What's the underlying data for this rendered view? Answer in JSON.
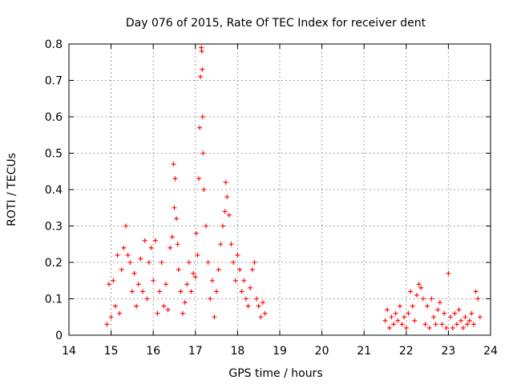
{
  "chart_data": {
    "type": "scatter",
    "title": "Day 076 of 2015, Rate Of TEC Index for receiver dent",
    "xlabel": "GPS time / hours",
    "ylabel": "ROTI / TECUs",
    "xlim": [
      14,
      24
    ],
    "ylim": [
      0,
      0.8
    ],
    "xticks": [
      "14",
      "15",
      "16",
      "17",
      "18",
      "19",
      "20",
      "21",
      "22",
      "23",
      "24"
    ],
    "yticks": [
      "0",
      "0.1",
      "0.2",
      "0.3",
      "0.4",
      "0.5",
      "0.6",
      "0.7",
      "0.8"
    ],
    "grid": true,
    "marker": "+",
    "color": "#ff0000",
    "series": [
      {
        "name": "ROTI",
        "x": [
          14.9,
          14.95,
          15.0,
          15.05,
          15.1,
          15.15,
          15.2,
          15.25,
          15.3,
          15.35,
          15.4,
          15.45,
          15.5,
          15.55,
          15.6,
          15.65,
          15.7,
          15.75,
          15.8,
          15.85,
          15.9,
          15.95,
          16.0,
          16.05,
          16.1,
          16.15,
          16.2,
          16.25,
          16.3,
          16.35,
          16.4,
          16.45,
          16.48,
          16.5,
          16.52,
          16.55,
          16.58,
          16.6,
          16.65,
          16.7,
          16.75,
          16.8,
          16.85,
          16.9,
          16.95,
          17.0,
          17.02,
          17.05,
          17.08,
          17.1,
          17.12,
          17.14,
          17.15,
          17.16,
          17.17,
          17.18,
          17.2,
          17.25,
          17.3,
          17.35,
          17.4,
          17.45,
          17.5,
          17.55,
          17.6,
          17.65,
          17.7,
          17.72,
          17.75,
          17.8,
          17.85,
          17.9,
          17.95,
          18.0,
          18.05,
          18.1,
          18.15,
          18.2,
          18.25,
          18.3,
          18.35,
          18.4,
          18.45,
          18.5,
          18.55,
          18.6,
          18.65,
          21.5,
          21.55,
          21.6,
          21.65,
          21.7,
          21.75,
          21.8,
          21.85,
          21.9,
          21.95,
          22.0,
          22.05,
          22.1,
          22.15,
          22.2,
          22.25,
          22.3,
          22.35,
          22.4,
          22.45,
          22.5,
          22.55,
          22.6,
          22.65,
          22.7,
          22.75,
          22.8,
          22.85,
          22.9,
          22.95,
          23.0,
          23.05,
          23.1,
          23.15,
          23.2,
          23.25,
          23.3,
          23.35,
          23.4,
          23.45,
          23.5,
          23.55,
          23.6,
          23.65,
          23.7,
          23.75
        ],
        "y": [
          0.03,
          0.14,
          0.05,
          0.15,
          0.08,
          0.22,
          0.06,
          0.18,
          0.24,
          0.3,
          0.22,
          0.2,
          0.12,
          0.17,
          0.08,
          0.14,
          0.21,
          0.12,
          0.26,
          0.1,
          0.2,
          0.24,
          0.15,
          0.26,
          0.06,
          0.12,
          0.2,
          0.08,
          0.14,
          0.07,
          0.24,
          0.27,
          0.47,
          0.35,
          0.43,
          0.32,
          0.25,
          0.18,
          0.12,
          0.06,
          0.09,
          0.14,
          0.2,
          0.12,
          0.17,
          0.16,
          0.28,
          0.22,
          0.43,
          0.57,
          0.71,
          0.79,
          0.78,
          0.73,
          0.6,
          0.5,
          0.4,
          0.3,
          0.2,
          0.1,
          0.15,
          0.05,
          0.12,
          0.18,
          0.25,
          0.3,
          0.34,
          0.42,
          0.38,
          0.33,
          0.25,
          0.2,
          0.15,
          0.22,
          0.18,
          0.12,
          0.15,
          0.1,
          0.08,
          0.13,
          0.18,
          0.2,
          0.1,
          0.08,
          0.05,
          0.09,
          0.06,
          0.04,
          0.07,
          0.02,
          0.05,
          0.03,
          0.06,
          0.04,
          0.08,
          0.03,
          0.05,
          0.02,
          0.06,
          0.12,
          0.08,
          0.04,
          0.11,
          0.14,
          0.13,
          0.1,
          0.03,
          0.08,
          0.02,
          0.1,
          0.05,
          0.03,
          0.07,
          0.09,
          0.03,
          0.06,
          0.02,
          0.17,
          0.05,
          0.02,
          0.06,
          0.03,
          0.07,
          0.04,
          0.02,
          0.05,
          0.03,
          0.04,
          0.06,
          0.03,
          0.12,
          0.1,
          0.05
        ]
      }
    ]
  }
}
